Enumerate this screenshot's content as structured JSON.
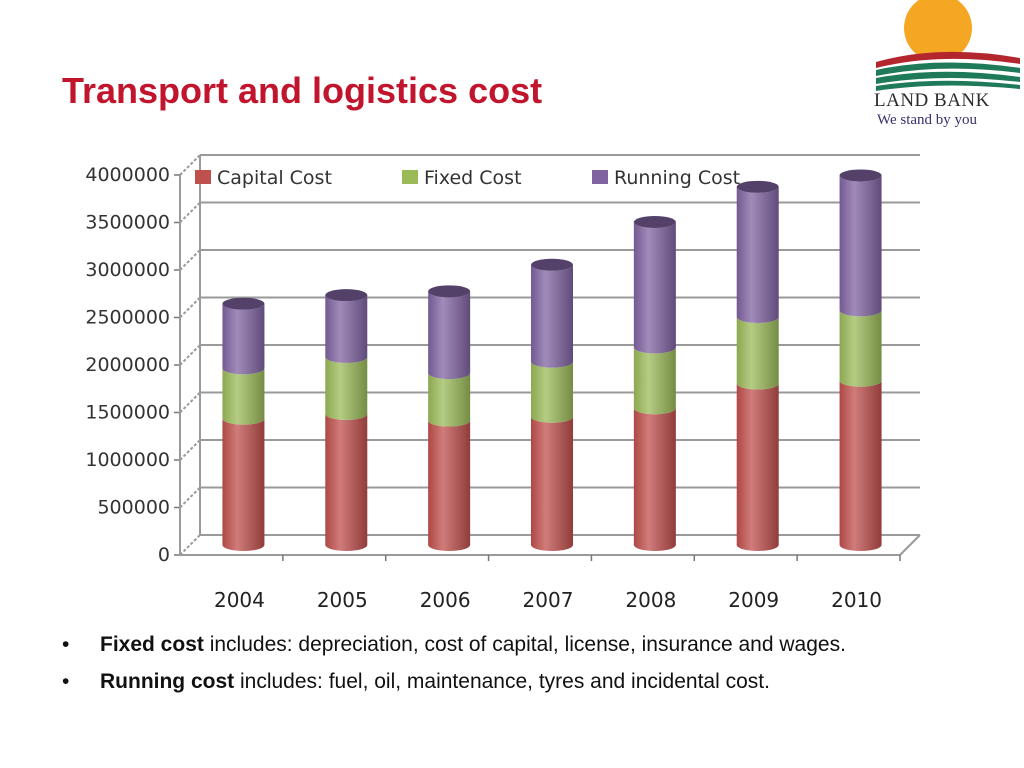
{
  "slide": {
    "title": "Transport and logistics cost"
  },
  "logo": {
    "name": "LAND BANK",
    "tagline": "We stand by you",
    "colors": {
      "sun": "#f5a623",
      "green": "#1f7a5a",
      "red": "#b3262e"
    }
  },
  "chart_data": {
    "type": "bar",
    "stacked": true,
    "style": "3d-cylinder",
    "categories": [
      "2004",
      "2005",
      "2006",
      "2007",
      "2008",
      "2009",
      "2010"
    ],
    "series": [
      {
        "name": "Capital Cost",
        "color": "#c0504d",
        "values": [
          1330000,
          1380000,
          1310000,
          1350000,
          1440000,
          1700000,
          1730000
        ]
      },
      {
        "name": "Fixed Cost",
        "color": "#9bbb59",
        "values": [
          530000,
          600000,
          500000,
          580000,
          640000,
          700000,
          740000
        ]
      },
      {
        "name": "Running Cost",
        "color": "#8064a2",
        "values": [
          680000,
          650000,
          860000,
          1020000,
          1320000,
          1370000,
          1420000
        ]
      }
    ],
    "ylim": [
      0,
      4000000
    ],
    "yticks": [
      "0",
      "500000",
      "1000000",
      "1500000",
      "2000000",
      "2500000",
      "3000000",
      "3500000",
      "4000000"
    ],
    "ytick_values": [
      0,
      500000,
      1000000,
      1500000,
      2000000,
      2500000,
      3000000,
      3500000,
      4000000
    ],
    "grid": true,
    "legend_position": "top"
  },
  "bullets": [
    {
      "bold": "Fixed cost",
      "text": " includes: depreciation, cost of capital, license, insurance and wages."
    },
    {
      "bold": "Running cost",
      "text": " includes: fuel, oil, maintenance, tyres and incidental cost."
    }
  ],
  "bullet_symbol": "•"
}
